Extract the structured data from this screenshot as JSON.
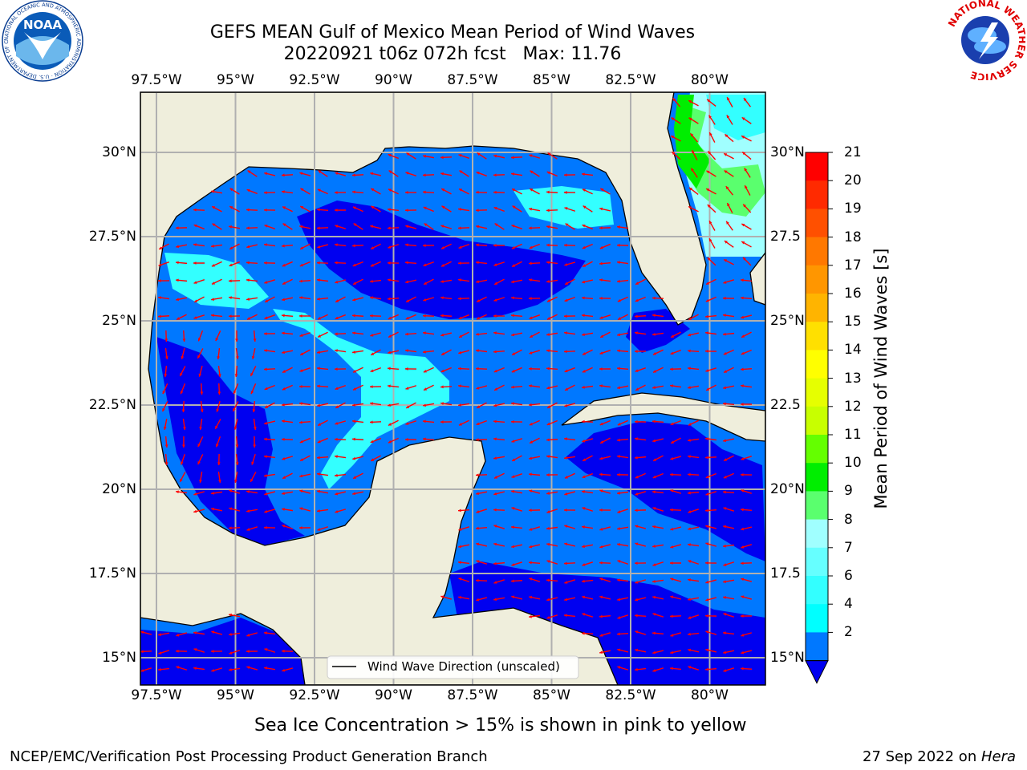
{
  "header": {
    "title_line1": "GEFS MEAN Gulf of Mexico Mean Period of Wind Waves",
    "title_line2": "20220921 t06z 072h fcst   Max: 11.76"
  },
  "logos": {
    "left": "noara-logo",
    "left_ring_text": "NATIONAL OCEANIC AND ATMOSPHERIC ADMINISTRATION · U.S. DEPARTMENT OF COMMERCE",
    "left_center_text": "NOAA",
    "right": "nws-logo",
    "right_ring_text": "NATIONAL WEATHER SERVICE"
  },
  "map": {
    "lon_labels": [
      "97.5°W",
      "95°W",
      "92.5°W",
      "90°W",
      "87.5°W",
      "85°W",
      "82.5°W",
      "80°W"
    ],
    "lat_labels": [
      "30°N",
      "27.5°N",
      "25°N",
      "22.5°N",
      "20°N",
      "17.5°N",
      "15°N"
    ],
    "lat_labels_right": [
      "30°N",
      "27.5",
      "25°N",
      "22.5",
      "20°N",
      "17.5",
      "15°N"
    ],
    "legend_label": "Wind Wave Direction (unscaled)",
    "colors": {
      "land": "#efeedc",
      "ocean_low": "#0000f0",
      "ocean_mid": "#0078ff",
      "ocean_cyan": "#33ffff",
      "ocean_lightcyan": "#a0ffff",
      "ocean_green": "#5aff6e",
      "ocean_brightgreen": "#00ee00",
      "arrow": "#ff0000",
      "coast": "#000000"
    }
  },
  "colorbar": {
    "label": "Mean Period of Wind Waves [s]",
    "tick_labels": [
      "21",
      "20",
      "19",
      "18",
      "17",
      "16",
      "15",
      "14",
      "13",
      "12",
      "11",
      "10",
      "9",
      "8",
      "7",
      "6",
      "4",
      "2"
    ],
    "colors": [
      "#ff0000",
      "#ff2a00",
      "#ff5000",
      "#ff7800",
      "#ff9600",
      "#ffb400",
      "#ffe000",
      "#ffff00",
      "#e6ff00",
      "#c8ff00",
      "#64ff00",
      "#00ee00",
      "#5aff6e",
      "#a0ffff",
      "#66ffff",
      "#33ffff",
      "#00ffff",
      "#0078ff"
    ],
    "under_color": "#0000f0"
  },
  "subtitle": "Sea Ice Concentration > 15% is shown in pink to yellow",
  "footer": {
    "left": "NCEP/EMC/Verification Post Processing Product Generation Branch",
    "right_prefix": "27 Sep 2022 on ",
    "right_italic": "Hera"
  }
}
